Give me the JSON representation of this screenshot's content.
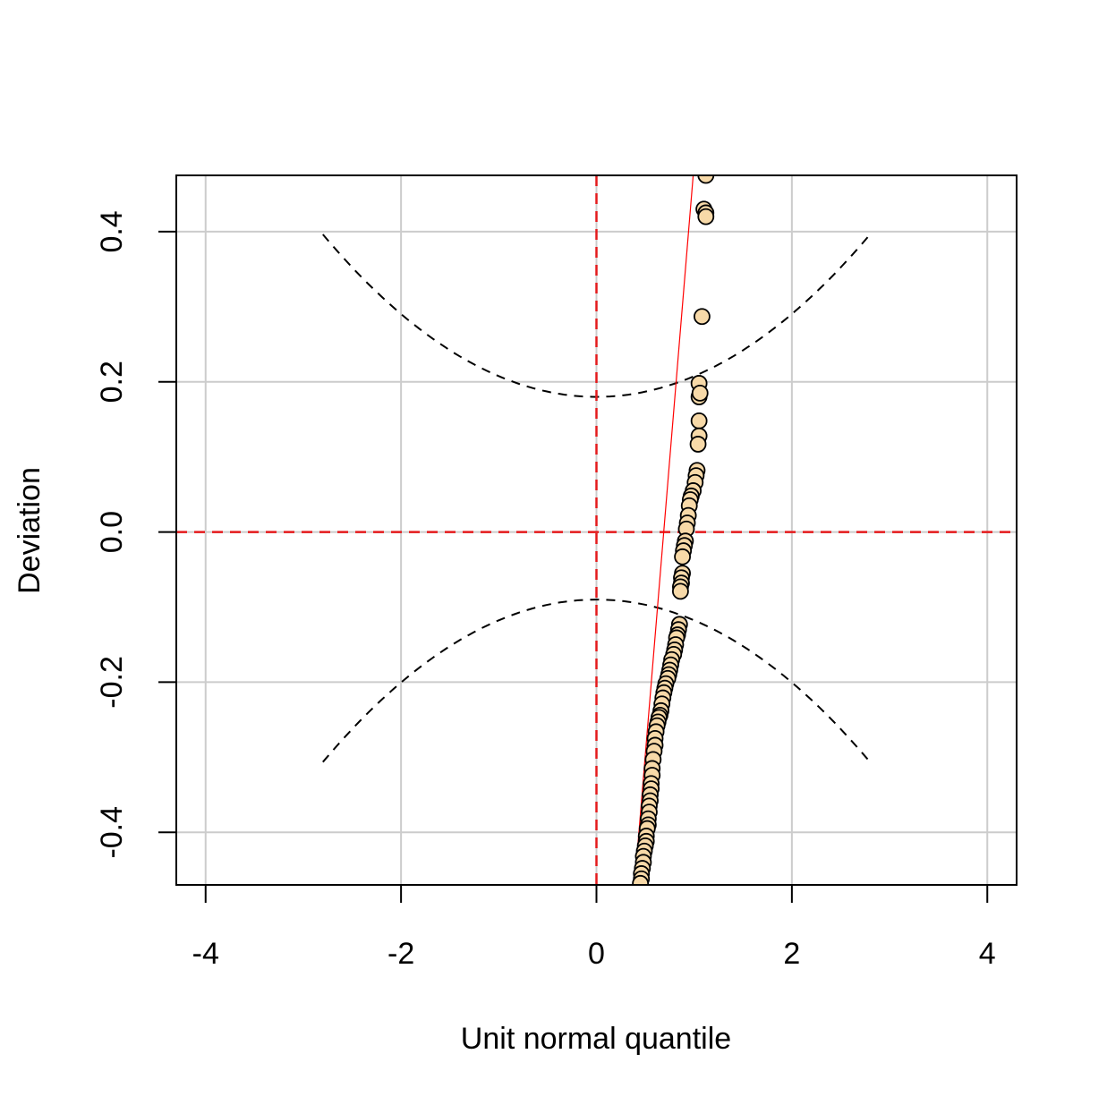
{
  "chart_data": {
    "type": "scatter",
    "title": "",
    "xlabel": "Unit normal quantile",
    "ylabel": "Deviation",
    "xlim": [
      -4.3,
      4.3
    ],
    "ylim": [
      -0.47,
      0.475
    ],
    "grid": true,
    "x_ticks": [
      {
        "value": -4,
        "label": "-4"
      },
      {
        "value": -2,
        "label": "-2"
      },
      {
        "value": 0,
        "label": "0"
      },
      {
        "value": 2,
        "label": "2"
      },
      {
        "value": 4,
        "label": "4"
      }
    ],
    "y_ticks": [
      {
        "value": -0.4,
        "label": "-0.4"
      },
      {
        "value": -0.2,
        "label": "-0.2"
      },
      {
        "value": 0.0,
        "label": "0.0"
      },
      {
        "value": 0.2,
        "label": "0.2"
      },
      {
        "value": 0.4,
        "label": "0.4"
      }
    ],
    "reference_lines": {
      "color": "#e41a1c",
      "vertical_x": 0,
      "horizontal_y": 0
    },
    "fit_line": {
      "color": "#ff0000",
      "points": [
        [
          0.39,
          -0.47
        ],
        [
          0.99,
          0.475
        ]
      ]
    },
    "confidence_band": {
      "color": "#000000",
      "center": 0.09,
      "offset": 0.09,
      "curvature": 0.0276,
      "x_range": [
        -2.8,
        2.8
      ]
    },
    "point_fill": "#f7d9a8",
    "point_stroke": "#000000",
    "points": [
      [
        1.12,
        0.475
      ],
      [
        1.1,
        0.43
      ],
      [
        1.12,
        0.425
      ],
      [
        1.12,
        0.42
      ],
      [
        1.08,
        0.287
      ],
      [
        1.05,
        0.198
      ],
      [
        1.05,
        0.18
      ],
      [
        1.06,
        0.185
      ],
      [
        1.05,
        0.148
      ],
      [
        1.05,
        0.128
      ],
      [
        1.04,
        0.117
      ],
      [
        1.03,
        0.082
      ],
      [
        1.02,
        0.075
      ],
      [
        1.01,
        0.066
      ],
      [
        0.99,
        0.055
      ],
      [
        0.97,
        0.048
      ],
      [
        0.96,
        0.043
      ],
      [
        0.95,
        0.035
      ],
      [
        0.94,
        0.022
      ],
      [
        0.93,
        0.012
      ],
      [
        0.92,
        0.004
      ],
      [
        0.91,
        -0.012
      ],
      [
        0.9,
        -0.018
      ],
      [
        0.89,
        -0.025
      ],
      [
        0.88,
        -0.033
      ],
      [
        0.88,
        -0.055
      ],
      [
        0.87,
        -0.061
      ],
      [
        0.87,
        -0.068
      ],
      [
        0.86,
        -0.073
      ],
      [
        0.86,
        -0.079
      ],
      [
        0.85,
        -0.123
      ],
      [
        0.84,
        -0.13
      ],
      [
        0.83,
        -0.137
      ],
      [
        0.82,
        -0.141
      ],
      [
        0.81,
        -0.15
      ],
      [
        0.8,
        -0.157
      ],
      [
        0.79,
        -0.163
      ],
      [
        0.77,
        -0.17
      ],
      [
        0.76,
        -0.177
      ],
      [
        0.75,
        -0.184
      ],
      [
        0.74,
        -0.19
      ],
      [
        0.73,
        -0.195
      ],
      [
        0.71,
        -0.202
      ],
      [
        0.7,
        -0.208
      ],
      [
        0.69,
        -0.214
      ],
      [
        0.68,
        -0.221
      ],
      [
        0.67,
        -0.229
      ],
      [
        0.66,
        -0.238
      ],
      [
        0.65,
        -0.244
      ],
      [
        0.64,
        -0.247
      ],
      [
        0.63,
        -0.253
      ],
      [
        0.62,
        -0.258
      ],
      [
        0.61,
        -0.266
      ],
      [
        0.6,
        -0.275
      ],
      [
        0.6,
        -0.284
      ],
      [
        0.59,
        -0.292
      ],
      [
        0.58,
        -0.303
      ],
      [
        0.57,
        -0.315
      ],
      [
        0.57,
        -0.324
      ],
      [
        0.56,
        -0.335
      ],
      [
        0.56,
        -0.342
      ],
      [
        0.55,
        -0.35
      ],
      [
        0.55,
        -0.358
      ],
      [
        0.54,
        -0.365
      ],
      [
        0.54,
        -0.373
      ],
      [
        0.53,
        -0.382
      ],
      [
        0.53,
        -0.39
      ],
      [
        0.52,
        -0.395
      ],
      [
        0.51,
        -0.405
      ],
      [
        0.51,
        -0.412
      ],
      [
        0.5,
        -0.418
      ],
      [
        0.49,
        -0.425
      ],
      [
        0.48,
        -0.432
      ],
      [
        0.48,
        -0.44
      ],
      [
        0.47,
        -0.448
      ],
      [
        0.46,
        -0.455
      ],
      [
        0.46,
        -0.462
      ],
      [
        0.45,
        -0.468
      ]
    ]
  }
}
